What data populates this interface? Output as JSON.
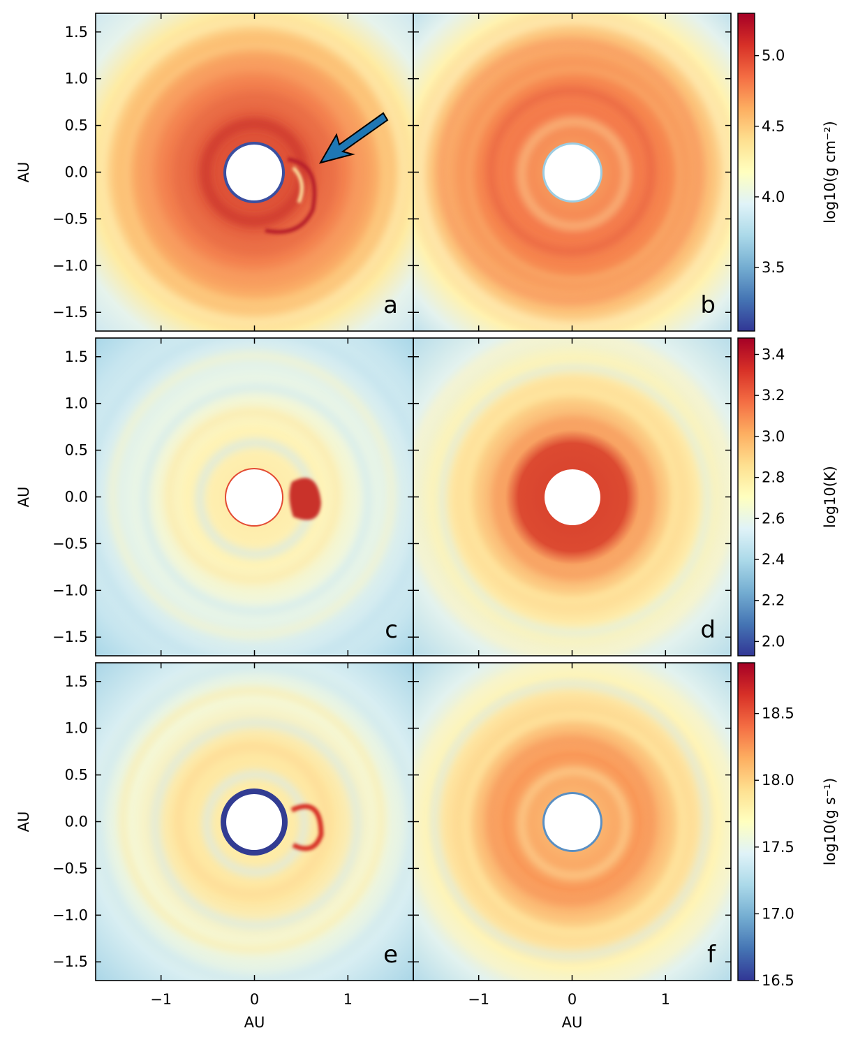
{
  "figure": {
    "ticks_x": [
      {
        "value": -1,
        "label": "−1"
      },
      {
        "value": 0,
        "label": "0"
      },
      {
        "value": 1,
        "label": "1"
      }
    ],
    "ticks_y": [
      {
        "value": 1.5,
        "label": "1.5"
      },
      {
        "value": 1.0,
        "label": "1.0"
      },
      {
        "value": 0.5,
        "label": "0.5"
      },
      {
        "value": 0.0,
        "label": "0.0"
      },
      {
        "value": -0.5,
        "label": "−0.5"
      },
      {
        "value": -1.0,
        "label": "−1.0"
      },
      {
        "value": -1.5,
        "label": "−1.5"
      }
    ],
    "axis_range": [
      -1.7,
      1.7
    ],
    "xlabel": "AU",
    "ylabel": "AU",
    "annotation": {
      "type": "arrow",
      "panel": "a",
      "points_to": [
        0.68,
        0.1
      ],
      "from": [
        1.42,
        0.62
      ],
      "color": "#1f77b4"
    }
  },
  "chart_data": [
    {
      "type": "heatmap",
      "panel": "a",
      "quantity": "density",
      "xlabel": "",
      "ylabel": "AU",
      "xlim": [
        -1.7,
        1.7
      ],
      "ylim": [
        -1.7,
        1.7
      ],
      "inner_hole_radius_AU": 0.3,
      "colorbar": {
        "label": "log10(g cm⁻²)",
        "ticks": [
          "3.5",
          "4.0",
          "4.5",
          "5.0"
        ],
        "range": [
          3.05,
          5.3
        ]
      },
      "feature": "bright spiral ring ~0.5–1.1 AU, blue rim at hole, clump at x≈0.55"
    },
    {
      "type": "heatmap",
      "panel": "b",
      "quantity": "density",
      "xlabel": "",
      "ylabel": "",
      "xlim": [
        -1.7,
        1.7
      ],
      "ylim": [
        -1.7,
        1.7
      ],
      "inner_hole_radius_AU": 0.3,
      "colorbar": {
        "label": "log10(g cm⁻²)",
        "ticks": [
          "3.5",
          "4.0",
          "4.5",
          "5.0"
        ],
        "range": [
          3.05,
          5.3
        ]
      },
      "feature": "spiral rings, no clump"
    },
    {
      "type": "heatmap",
      "panel": "c",
      "quantity": "temperature",
      "xlabel": "",
      "ylabel": "AU",
      "xlim": [
        -1.7,
        1.7
      ],
      "ylim": [
        -1.7,
        1.7
      ],
      "inner_hole_radius_AU": 0.3,
      "colorbar": {
        "label": "log10(K)",
        "ticks": [
          "2.0",
          "2.2",
          "2.4",
          "2.6",
          "2.8",
          "3.0",
          "3.2",
          "3.4"
        ],
        "range": [
          1.93,
          3.48
        ]
      },
      "feature": "cool rings, hot clump near x≈0.55"
    },
    {
      "type": "heatmap",
      "panel": "d",
      "quantity": "temperature",
      "xlabel": "",
      "ylabel": "",
      "xlim": [
        -1.7,
        1.7
      ],
      "ylim": [
        -1.7,
        1.7
      ],
      "inner_hole_radius_AU": 0.3,
      "colorbar": {
        "label": "log10(K)",
        "ticks": [
          "2.0",
          "2.2",
          "2.4",
          "2.6",
          "2.8",
          "3.0",
          "3.2",
          "3.4"
        ],
        "range": [
          1.93,
          3.48
        ]
      },
      "feature": "hot inner disk out to ~0.55 AU"
    },
    {
      "type": "heatmap",
      "panel": "e",
      "quantity": "mass flux",
      "xlabel": "AU",
      "ylabel": "AU",
      "xlim": [
        -1.7,
        1.7
      ],
      "ylim": [
        -1.7,
        1.7
      ],
      "inner_hole_radius_AU": 0.3,
      "colorbar": {
        "label": "log10(g s⁻¹)",
        "ticks": [
          "16.5",
          "17.0",
          "17.5",
          "18.0",
          "18.5"
        ],
        "range": [
          16.5,
          18.88
        ]
      },
      "feature": "dark blue rim around hole, clump at x≈0.55"
    },
    {
      "type": "heatmap",
      "panel": "f",
      "quantity": "mass flux",
      "xlabel": "AU",
      "ylabel": "",
      "xlim": [
        -1.7,
        1.7
      ],
      "ylim": [
        -1.7,
        1.7
      ],
      "inner_hole_radius_AU": 0.3,
      "colorbar": {
        "label": "log10(g s⁻¹)",
        "ticks": [
          "16.5",
          "17.0",
          "17.5",
          "18.0",
          "18.5"
        ],
        "range": [
          16.5,
          18.88
        ]
      },
      "feature": "orange spiral ring"
    }
  ]
}
